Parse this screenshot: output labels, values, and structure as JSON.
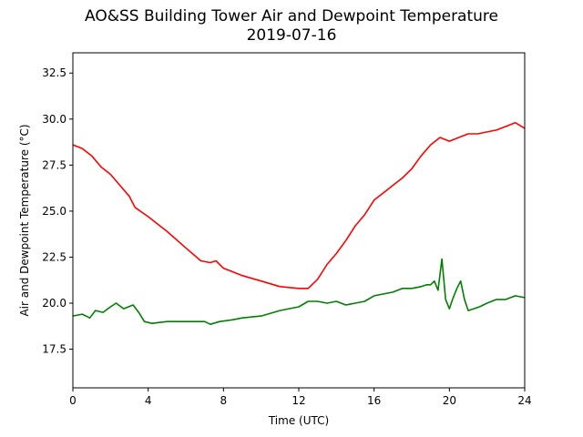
{
  "chart_data": {
    "type": "line",
    "title": "AO&SS Building Tower Air and Dewpoint Temperature",
    "subtitle": "2019-07-16",
    "xlabel": "Time (UTC)",
    "ylabel": "Air and Dewpoint Temperature (°C)",
    "xlim": [
      0,
      24
    ],
    "ylim": [
      15.4,
      33.6
    ],
    "xticks": [
      0,
      4,
      8,
      12,
      16,
      20,
      24
    ],
    "yticks": [
      17.5,
      20.0,
      22.5,
      25.0,
      27.5,
      30.0,
      32.5
    ],
    "ytick_labels": [
      "17.5",
      "20.0",
      "22.5",
      "25.0",
      "27.5",
      "30.0",
      "32.5"
    ],
    "grid": false,
    "legend": "none",
    "series": [
      {
        "color": "#ff0000",
        "points": [
          [
            0.0,
            28.6
          ],
          [
            0.5,
            28.4
          ],
          [
            1.0,
            28.0
          ],
          [
            1.5,
            27.4
          ],
          [
            2.0,
            27.0
          ],
          [
            2.5,
            26.4
          ],
          [
            3.0,
            25.8
          ],
          [
            3.3,
            25.2
          ],
          [
            4.0,
            24.7
          ],
          [
            5.0,
            23.9
          ],
          [
            6.0,
            23.0
          ],
          [
            6.8,
            22.3
          ],
          [
            7.3,
            22.2
          ],
          [
            7.6,
            22.3
          ],
          [
            8.0,
            21.9
          ],
          [
            9.0,
            21.5
          ],
          [
            10.0,
            21.2
          ],
          [
            11.0,
            20.9
          ],
          [
            12.0,
            20.8
          ],
          [
            12.5,
            20.8
          ],
          [
            13.0,
            21.3
          ],
          [
            13.5,
            22.1
          ],
          [
            14.0,
            22.7
          ],
          [
            14.5,
            23.4
          ],
          [
            15.0,
            24.2
          ],
          [
            15.5,
            24.8
          ],
          [
            16.0,
            25.6
          ],
          [
            16.5,
            26.0
          ],
          [
            17.0,
            26.4
          ],
          [
            17.5,
            26.8
          ],
          [
            18.0,
            27.3
          ],
          [
            18.5,
            28.0
          ],
          [
            19.0,
            28.6
          ],
          [
            19.5,
            29.0
          ],
          [
            20.0,
            28.8
          ],
          [
            20.5,
            29.0
          ],
          [
            21.0,
            29.2
          ],
          [
            21.5,
            29.2
          ],
          [
            22.0,
            29.3
          ],
          [
            22.5,
            29.4
          ],
          [
            23.0,
            29.6
          ],
          [
            23.5,
            29.8
          ],
          [
            24.0,
            29.5
          ]
        ]
      },
      {
        "color": "#008000",
        "points": [
          [
            0.0,
            19.3
          ],
          [
            0.5,
            19.4
          ],
          [
            0.9,
            19.2
          ],
          [
            1.2,
            19.6
          ],
          [
            1.6,
            19.5
          ],
          [
            2.0,
            19.8
          ],
          [
            2.3,
            20.0
          ],
          [
            2.7,
            19.7
          ],
          [
            3.2,
            19.9
          ],
          [
            3.5,
            19.5
          ],
          [
            3.8,
            19.0
          ],
          [
            4.2,
            18.9
          ],
          [
            5.0,
            19.0
          ],
          [
            6.0,
            19.0
          ],
          [
            7.0,
            19.0
          ],
          [
            7.3,
            18.85
          ],
          [
            7.8,
            19.0
          ],
          [
            8.5,
            19.1
          ],
          [
            9.0,
            19.2
          ],
          [
            10.0,
            19.3
          ],
          [
            11.0,
            19.6
          ],
          [
            12.0,
            19.8
          ],
          [
            12.5,
            20.1
          ],
          [
            13.0,
            20.1
          ],
          [
            13.5,
            20.0
          ],
          [
            14.0,
            20.1
          ],
          [
            14.5,
            19.9
          ],
          [
            15.0,
            20.0
          ],
          [
            15.5,
            20.1
          ],
          [
            16.0,
            20.4
          ],
          [
            16.5,
            20.5
          ],
          [
            17.0,
            20.6
          ],
          [
            17.5,
            20.8
          ],
          [
            18.0,
            20.8
          ],
          [
            18.5,
            20.9
          ],
          [
            18.8,
            21.0
          ],
          [
            19.0,
            21.0
          ],
          [
            19.2,
            21.2
          ],
          [
            19.4,
            20.7
          ],
          [
            19.6,
            22.4
          ],
          [
            19.8,
            20.2
          ],
          [
            20.0,
            19.7
          ],
          [
            20.2,
            20.3
          ],
          [
            20.4,
            20.8
          ],
          [
            20.6,
            21.2
          ],
          [
            20.8,
            20.2
          ],
          [
            21.0,
            19.6
          ],
          [
            21.3,
            19.7
          ],
          [
            21.6,
            19.8
          ],
          [
            22.0,
            20.0
          ],
          [
            22.5,
            20.2
          ],
          [
            23.0,
            20.2
          ],
          [
            23.5,
            20.4
          ],
          [
            24.0,
            20.3
          ]
        ]
      }
    ]
  }
}
